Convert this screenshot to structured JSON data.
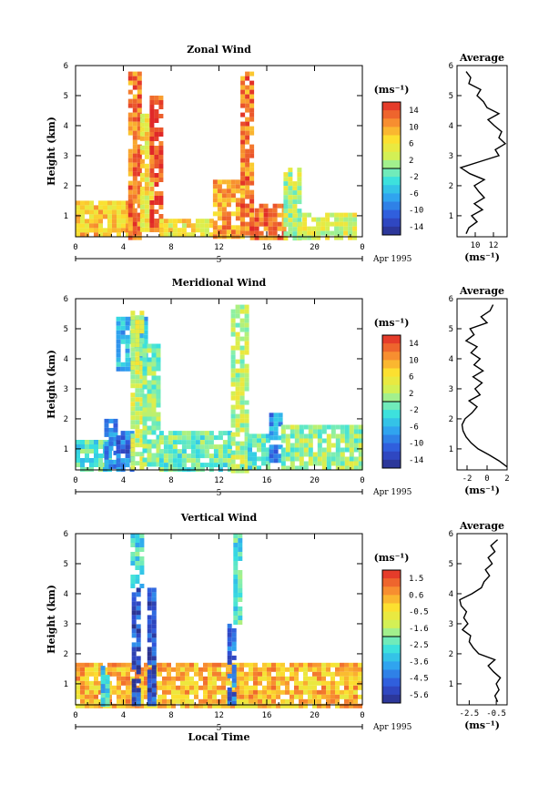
{
  "chart_data": [
    {
      "type": "heatmap",
      "title": "Zonal Wind",
      "xlabel": "",
      "ylabel": "Height (km)",
      "x_ticks": [
        "0",
        "4",
        "8",
        "12",
        "16",
        "20",
        "0"
      ],
      "y_ticks": [
        "1",
        "2",
        "3",
        "4",
        "5",
        "6"
      ],
      "xlim": [
        0,
        24
      ],
      "ylim": [
        0.3,
        6
      ],
      "date_label": "5",
      "month_label": "Apr 1995",
      "colorbar": {
        "unit": "(ms⁻¹)",
        "ticks": [
          "14",
          "10",
          "6",
          "2",
          "-2",
          "-6",
          "-10",
          "-14"
        ],
        "range": [
          -16,
          16
        ]
      },
      "regions": [
        {
          "x": [
            0,
            4.6
          ],
          "y": [
            0.3,
            1.5
          ],
          "v": 8
        },
        {
          "x": [
            4.4,
            5.4
          ],
          "y": [
            0.3,
            5.8
          ],
          "v": 12
        },
        {
          "x": [
            5.4,
            6.4
          ],
          "y": [
            0.6,
            4.4
          ],
          "v": 6
        },
        {
          "x": [
            6.2,
            7.0
          ],
          "y": [
            0.5,
            5.0
          ],
          "v": 14
        },
        {
          "x": [
            7.0,
            11.5
          ],
          "y": [
            0.3,
            0.9
          ],
          "v": 6
        },
        {
          "x": [
            11.5,
            14.0
          ],
          "y": [
            0.3,
            2.2
          ],
          "v": 10
        },
        {
          "x": [
            13.8,
            14.6
          ],
          "y": [
            0.4,
            5.8
          ],
          "v": 12
        },
        {
          "x": [
            14.6,
            17.6
          ],
          "y": [
            0.3,
            1.4
          ],
          "v": 12
        },
        {
          "x": [
            17.4,
            18.6
          ],
          "y": [
            0.3,
            2.6
          ],
          "v": 2
        },
        {
          "x": [
            18.6,
            23.5
          ],
          "y": [
            0.3,
            1.1
          ],
          "v": 4
        }
      ],
      "profile": {
        "title": "Average",
        "xlabel": "(ms⁻¹)",
        "x_ticks": [
          "10",
          "12"
        ],
        "xlim": [
          8,
          13.5
        ],
        "height": [
          0.4,
          0.6,
          0.8,
          1.0,
          1.2,
          1.4,
          1.6,
          1.8,
          2.0,
          2.2,
          2.4,
          2.6,
          2.8,
          3.0,
          3.2,
          3.4,
          3.6,
          3.8,
          4.0,
          4.2,
          4.4,
          4.6,
          4.8,
          5.0,
          5.2,
          5.4,
          5.6,
          5.8
        ],
        "value": [
          9.0,
          9.3,
          10.2,
          9.6,
          10.8,
          9.9,
          11.0,
          10.4,
          9.9,
          11.0,
          9.4,
          8.4,
          10.5,
          12.6,
          12.2,
          13.3,
          12.6,
          12.9,
          12.1,
          11.4,
          12.6,
          11.3,
          10.9,
          10.2,
          10.6,
          9.3,
          9.5,
          9.0
        ]
      }
    },
    {
      "type": "heatmap",
      "title": "Meridional Wind",
      "xlabel": "",
      "ylabel": "Height (km)",
      "x_ticks": [
        "0",
        "4",
        "8",
        "12",
        "16",
        "20",
        "0"
      ],
      "y_ticks": [
        "1",
        "2",
        "3",
        "4",
        "5",
        "6"
      ],
      "xlim": [
        0,
        24
      ],
      "ylim": [
        0.3,
        6
      ],
      "date_label": "5",
      "month_label": "Apr 1995",
      "colorbar": {
        "unit": "(ms⁻¹)",
        "ticks": [
          "14",
          "10",
          "6",
          "2",
          "-2",
          "-6",
          "-10",
          "-14"
        ],
        "range": [
          -16,
          16
        ]
      },
      "regions": [
        {
          "x": [
            0,
            3.0
          ],
          "y": [
            0.3,
            1.3
          ],
          "v": -2
        },
        {
          "x": [
            2.4,
            3.4
          ],
          "y": [
            0.4,
            2.0
          ],
          "v": -8
        },
        {
          "x": [
            3.4,
            4.6
          ],
          "y": [
            0.3,
            1.6
          ],
          "v": -10
        },
        {
          "x": [
            3.4,
            6.0
          ],
          "y": [
            3.6,
            5.4
          ],
          "v": -6
        },
        {
          "x": [
            4.6,
            5.6
          ],
          "y": [
            0.3,
            5.6
          ],
          "v": 3
        },
        {
          "x": [
            5.6,
            7.0
          ],
          "y": [
            0.5,
            4.5
          ],
          "v": 0
        },
        {
          "x": [
            7.0,
            13.0
          ],
          "y": [
            0.3,
            1.6
          ],
          "v": -1
        },
        {
          "x": [
            13.0,
            14.4
          ],
          "y": [
            0.3,
            5.8
          ],
          "v": 2
        },
        {
          "x": [
            14.4,
            16.2
          ],
          "y": [
            0.3,
            1.5
          ],
          "v": -2
        },
        {
          "x": [
            16.2,
            17.2
          ],
          "y": [
            0.6,
            2.2
          ],
          "v": -8
        },
        {
          "x": [
            17.2,
            24.0
          ],
          "y": [
            0.3,
            1.8
          ],
          "v": 1
        }
      ],
      "profile": {
        "title": "Average",
        "xlabel": "(ms⁻¹)",
        "x_ticks": [
          "-2",
          "0",
          "2"
        ],
        "xlim": [
          -3,
          2
        ],
        "height": [
          0.4,
          0.6,
          0.8,
          1.0,
          1.2,
          1.4,
          1.6,
          1.8,
          2.0,
          2.2,
          2.4,
          2.6,
          2.8,
          3.0,
          3.2,
          3.4,
          3.6,
          3.8,
          4.0,
          4.2,
          4.4,
          4.6,
          4.8,
          5.0,
          5.2,
          5.4,
          5.6,
          5.8
        ],
        "value": [
          2.0,
          1.2,
          0.2,
          -0.9,
          -1.6,
          -2.1,
          -2.4,
          -2.5,
          -2.2,
          -1.5,
          -1.0,
          -1.8,
          -0.7,
          -1.2,
          -0.5,
          -1.4,
          -0.4,
          -1.3,
          -0.7,
          -1.6,
          -1.0,
          -2.1,
          -1.3,
          -1.7,
          0.0,
          -0.6,
          0.3,
          0.6
        ]
      }
    },
    {
      "type": "heatmap",
      "title": "Vertical Wind",
      "xlabel": "Local Time",
      "ylabel": "Height (km)",
      "x_ticks": [
        "0",
        "4",
        "8",
        "12",
        "16",
        "20",
        "0"
      ],
      "y_ticks": [
        "1",
        "2",
        "3",
        "4",
        "5",
        "6"
      ],
      "xlim": [
        0,
        24
      ],
      "ylim": [
        0.3,
        6
      ],
      "date_label": "5",
      "month_label": "Apr 1995",
      "colorbar": {
        "unit": "(ms⁻¹)",
        "ticks": [
          "1.5",
          "0.6",
          "-0.5",
          "-1.6",
          "-2.5",
          "-3.6",
          "-4.5",
          "-5.6"
        ],
        "range": [
          -6,
          2
        ]
      },
      "regions": [
        {
          "x": [
            0,
            24
          ],
          "y": [
            0.3,
            1.7
          ],
          "v": 0.2
        },
        {
          "x": [
            2.1,
            2.5
          ],
          "y": [
            0.3,
            1.6
          ],
          "v": -3.0
        },
        {
          "x": [
            4.7,
            5.3
          ],
          "y": [
            0.3,
            4.2
          ],
          "v": -5.0
        },
        {
          "x": [
            4.6,
            5.4
          ],
          "y": [
            4.2,
            6.0
          ],
          "v": -2.8
        },
        {
          "x": [
            6.0,
            6.6
          ],
          "y": [
            0.3,
            4.2
          ],
          "v": -5.0
        },
        {
          "x": [
            12.7,
            13.3
          ],
          "y": [
            0.3,
            3.0
          ],
          "v": -4.5
        },
        {
          "x": [
            13.2,
            13.8
          ],
          "y": [
            3.0,
            6.0
          ],
          "v": -2.6
        }
      ],
      "profile": {
        "title": "Average",
        "xlabel": "(ms⁻¹)",
        "x_ticks": [
          "-2.5",
          "-0.5"
        ],
        "xlim": [
          -3.4,
          0.3
        ],
        "height": [
          0.4,
          0.6,
          0.8,
          1.0,
          1.2,
          1.4,
          1.6,
          1.8,
          2.0,
          2.2,
          2.4,
          2.6,
          2.8,
          3.0,
          3.2,
          3.4,
          3.6,
          3.8,
          4.0,
          4.2,
          4.4,
          4.6,
          4.8,
          5.0,
          5.2,
          5.4,
          5.6,
          5.8
        ],
        "value": [
          -0.4,
          -0.6,
          -0.3,
          -0.5,
          -0.2,
          -0.7,
          -1.1,
          -0.6,
          -1.8,
          -2.2,
          -2.5,
          -2.4,
          -3.0,
          -2.6,
          -2.9,
          -2.7,
          -3.1,
          -3.2,
          -2.3,
          -1.6,
          -1.4,
          -1.0,
          -1.3,
          -0.8,
          -1.1,
          -0.6,
          -0.9,
          -0.4
        ]
      }
    }
  ]
}
